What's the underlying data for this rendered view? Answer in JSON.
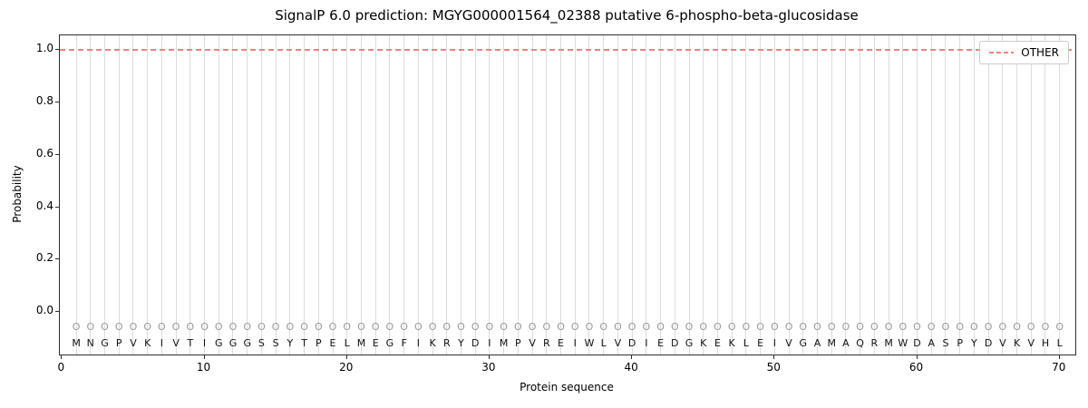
{
  "chart_data": {
    "type": "line",
    "title": "SignalP 6.0 prediction: MGYG000001564_02388 putative 6-phospho-beta-glucosidase",
    "xlabel": "Protein sequence",
    "ylabel": "Probability",
    "xlim": [
      -0.15,
      71.1
    ],
    "ylim": [
      -0.163,
      1.057
    ],
    "x_ticks": [
      {
        "value": 0,
        "label": "0"
      },
      {
        "value": 10,
        "label": "10"
      },
      {
        "value": 20,
        "label": "20"
      },
      {
        "value": 30,
        "label": "30"
      },
      {
        "value": 40,
        "label": "40"
      },
      {
        "value": 50,
        "label": "50"
      },
      {
        "value": 60,
        "label": "60"
      },
      {
        "value": 70,
        "label": "70"
      }
    ],
    "y_ticks": [
      {
        "value": 0.0,
        "label": "0.0"
      },
      {
        "value": 0.2,
        "label": "0.2"
      },
      {
        "value": 0.4,
        "label": "0.4"
      },
      {
        "value": 0.6,
        "label": "0.6"
      },
      {
        "value": 0.8,
        "label": "0.8"
      },
      {
        "value": 1.0,
        "label": "1.0"
      }
    ],
    "grid": {
      "vertical_per_residue": true,
      "color": "#dcdcdc"
    },
    "legend": {
      "position": "upper right",
      "entries": [
        {
          "label": "OTHER",
          "color": "#f08080",
          "linestyle": "dashed"
        }
      ]
    },
    "series": [
      {
        "name": "OTHER",
        "color": "#f08080",
        "linestyle": "dashed",
        "constant_y": 1.0,
        "note": "horizontal dashed line at probability 1.0 spanning the full x-range (positions 1-70)"
      }
    ],
    "positions": {
      "start": 1,
      "end": 70
    },
    "sequence": "MNGPVKIVTIGGGSSYTPELMEGFIKRYDIMPVREIWLVDIEDGKEKLEIVGAMAQRMWDASPYDVKVHL",
    "per_position_labels": "OOOOOOOOOOOOOOOOOOOOOOOOOOOOOOOOOOOOOOOOOOOOOOOOOOOOOOOOOOOOOOOOOOOOOO",
    "rows": {
      "marker_row_y": -0.06,
      "sequence_row_y": -0.12
    }
  }
}
